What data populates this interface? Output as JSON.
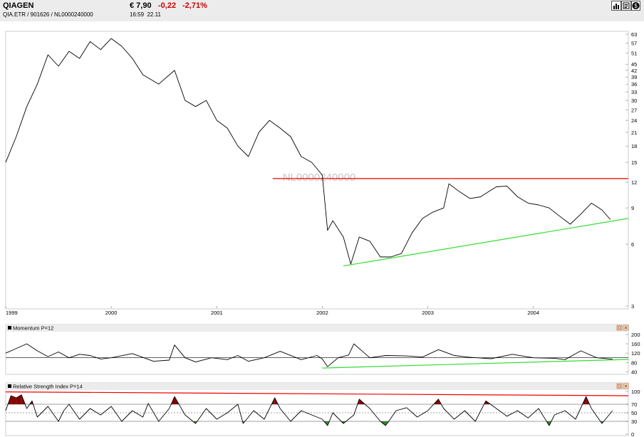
{
  "header": {
    "name": "QIAGEN",
    "exchange_line": "QIA.ETR  /  901626  /  NL0000240000",
    "price": "€ 7,90",
    "change": "-0,22",
    "change_pct": "-2,71%",
    "time": "16:59",
    "date": "22.11"
  },
  "toolbar": {
    "icons": [
      "bar-chart-icon",
      "news-icon",
      "edit-icon",
      "dollar-icon"
    ]
  },
  "chart_data": [
    {
      "type": "line",
      "title": "",
      "watermark": "NL0000240000",
      "scale": "log",
      "ylim": [
        3,
        63
      ],
      "y_ticks": [
        63,
        57,
        51,
        45,
        42,
        39,
        36,
        33,
        30,
        27,
        24,
        21,
        18,
        15,
        12,
        9,
        6,
        3
      ],
      "x_ticks": [
        "1999",
        "2000",
        "2001",
        "2002",
        "2003",
        "2004"
      ],
      "x_tick_pos": [
        1999.0,
        2000.0,
        2001.0,
        2002.0,
        2003.0,
        2004.0
      ],
      "xlim": [
        1999.0,
        2004.9
      ],
      "series": [
        {
          "color": "#000000",
          "x": [
            1999.0,
            1999.1,
            1999.2,
            1999.3,
            1999.4,
            1999.5,
            1999.6,
            1999.7,
            1999.8,
            1999.9,
            2000.0,
            2000.1,
            2000.2,
            2000.3,
            2000.45,
            2000.6,
            2000.7,
            2000.8,
            2000.9,
            2001.0,
            2001.1,
            2001.2,
            2001.3,
            2001.4,
            2001.5,
            2001.6,
            2001.7,
            2001.8,
            2001.9,
            2002.0,
            2002.05,
            2002.1,
            2002.2,
            2002.27,
            2002.35,
            2002.45,
            2002.55,
            2002.65,
            2002.75,
            2002.85,
            2002.95,
            2003.05,
            2003.15,
            2003.2,
            2003.3,
            2003.4,
            2003.5,
            2003.6,
            2003.65,
            2003.75,
            2003.85,
            2003.95,
            2004.05,
            2004.15,
            2004.25,
            2004.35,
            2004.45,
            2004.55,
            2004.65,
            2004.73
          ],
          "values": [
            15,
            20,
            28,
            36,
            50,
            44,
            52,
            48,
            58,
            53,
            60,
            55,
            48,
            40,
            36,
            42,
            30,
            28,
            30,
            24,
            22,
            18,
            16,
            21,
            24,
            22,
            20,
            16,
            15,
            13,
            7.0,
            7.8,
            6.5,
            4.8,
            6.5,
            6.2,
            5.2,
            5.2,
            5.4,
            6.8,
            8.0,
            8.6,
            9.0,
            11.8,
            10.8,
            10.0,
            10.2,
            11.0,
            11.4,
            11.5,
            10.2,
            9.5,
            9.3,
            9.0,
            8.2,
            7.5,
            8.4,
            9.5,
            8.8,
            7.9
          ]
        }
      ],
      "trend_lines": [
        {
          "color": "#ee0000",
          "x": [
            2001.53,
            2004.9
          ],
          "values": [
            12.5,
            12.5
          ]
        },
        {
          "color": "#33dd33",
          "x": [
            2002.2,
            2004.9
          ],
          "values": [
            4.7,
            8.0
          ]
        }
      ]
    },
    {
      "type": "line",
      "title": "Momentum P=12",
      "ylim": [
        35,
        200
      ],
      "y_ticks": [
        200,
        160,
        120,
        80,
        40
      ],
      "xlim": [
        1999.0,
        2004.9
      ],
      "reference_line": 100,
      "series": [
        {
          "color": "#000000",
          "x": [
            1999.0,
            1999.1,
            1999.2,
            1999.3,
            1999.4,
            1999.5,
            1999.6,
            1999.7,
            1999.8,
            1999.9,
            2000.0,
            2000.2,
            2000.4,
            2000.55,
            2000.6,
            2000.7,
            2000.8,
            2000.95,
            2001.1,
            2001.2,
            2001.3,
            2001.45,
            2001.6,
            2001.8,
            2001.95,
            2002.0,
            2002.05,
            2002.15,
            2002.25,
            2002.3,
            2002.45,
            2002.6,
            2002.8,
            2002.95,
            2003.1,
            2003.25,
            2003.4,
            2003.6,
            2003.8,
            2004.0,
            2004.2,
            2004.3,
            2004.45,
            2004.6,
            2004.75
          ],
          "values": [
            120,
            140,
            160,
            130,
            105,
            125,
            100,
            115,
            110,
            95,
            100,
            118,
            85,
            90,
            155,
            100,
            82,
            100,
            92,
            110,
            85,
            100,
            128,
            92,
            110,
            95,
            62,
            100,
            112,
            160,
            100,
            110,
            108,
            103,
            135,
            110,
            102,
            96,
            115,
            100,
            98,
            92,
            130,
            100,
            94
          ]
        }
      ],
      "trend_lines": [
        {
          "color": "#33dd33",
          "x": [
            2002.0,
            2004.9
          ],
          "values": [
            56,
            93
          ]
        }
      ]
    },
    {
      "type": "line",
      "title": "Relative Strength Index P=14",
      "ylim": [
        0,
        100
      ],
      "y_ticks": [
        100,
        70,
        50,
        30,
        0
      ],
      "xlim": [
        1999.0,
        2004.9
      ],
      "reference_lines": [
        70,
        50,
        30
      ],
      "fill_above": {
        "level": 70,
        "color": "#880000"
      },
      "fill_below": {
        "level": 30,
        "color": "#228822"
      },
      "series": [
        {
          "color": "#000000",
          "x": [
            1999.0,
            1999.05,
            1999.1,
            1999.15,
            1999.2,
            1999.25,
            1999.3,
            1999.4,
            1999.5,
            1999.55,
            1999.6,
            1999.7,
            1999.8,
            1999.9,
            2000.0,
            2000.1,
            2000.2,
            2000.3,
            2000.35,
            2000.45,
            2000.55,
            2000.6,
            2000.7,
            2000.8,
            2000.9,
            2001.0,
            2001.1,
            2001.2,
            2001.25,
            2001.35,
            2001.45,
            2001.55,
            2001.6,
            2001.7,
            2001.8,
            2001.9,
            2002.0,
            2002.05,
            2002.1,
            2002.2,
            2002.3,
            2002.35,
            2002.45,
            2002.55,
            2002.6,
            2002.7,
            2002.8,
            2002.9,
            2003.0,
            2003.1,
            2003.15,
            2003.25,
            2003.35,
            2003.45,
            2003.55,
            2003.65,
            2003.75,
            2003.85,
            2003.95,
            2004.05,
            2004.15,
            2004.2,
            2004.3,
            2004.4,
            2004.5,
            2004.55,
            2004.65,
            2004.75
          ],
          "values": [
            55,
            90,
            85,
            92,
            60,
            78,
            40,
            65,
            30,
            55,
            70,
            35,
            60,
            45,
            65,
            30,
            55,
            40,
            72,
            30,
            60,
            88,
            45,
            25,
            60,
            35,
            50,
            70,
            25,
            55,
            35,
            85,
            60,
            30,
            55,
            45,
            35,
            20,
            50,
            25,
            45,
            82,
            60,
            30,
            20,
            55,
            62,
            40,
            55,
            82,
            60,
            35,
            55,
            30,
            78,
            60,
            42,
            55,
            38,
            60,
            20,
            45,
            55,
            35,
            88,
            60,
            25,
            55
          ]
        }
      ],
      "trend_lines": [
        {
          "color": "#ee0000",
          "x": [
            1999.0,
            2004.9
          ],
          "values": [
            99,
            90
          ]
        }
      ]
    }
  ],
  "panels": [
    {
      "title": "Momentum P=12",
      "controls": [
        "maximize",
        "close"
      ]
    },
    {
      "title": "Relative Strength Index P=14",
      "controls": [
        "maximize",
        "close"
      ]
    }
  ]
}
